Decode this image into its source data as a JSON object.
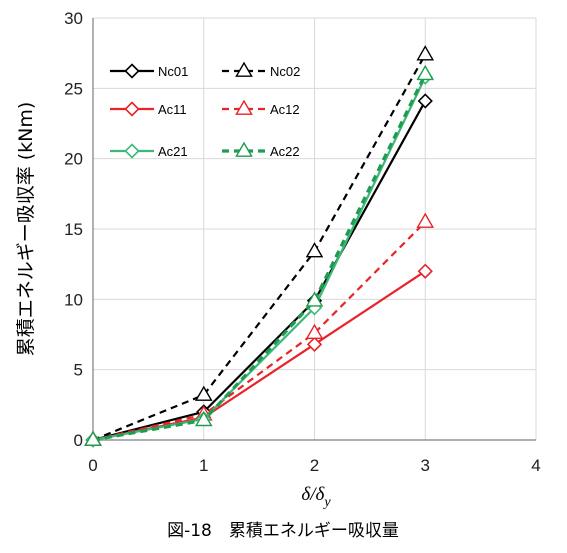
{
  "figure": {
    "caption": "図-18　累積エネルギー吸収量"
  },
  "chart_data": {
    "type": "line",
    "xlabel": "δ/δy",
    "xlabel_main": "δ/δ",
    "xlabel_sub": "y",
    "ylabel": "累積エネルギー吸収率 (kNm)",
    "xlim": [
      0,
      4
    ],
    "ylim": [
      0,
      30
    ],
    "xticks": [
      "0",
      "1",
      "2",
      "3",
      "4"
    ],
    "yticks": [
      "0",
      "5",
      "10",
      "15",
      "20",
      "25",
      "30"
    ],
    "grid": true,
    "legend_position": "top-left",
    "series": [
      {
        "name": "Nc01",
        "color": "#000000",
        "dash": "solid",
        "marker": "diamond",
        "x": [
          0,
          1,
          2,
          3
        ],
        "y": [
          0,
          2.0,
          9.9,
          24.1
        ]
      },
      {
        "name": "Nc02",
        "color": "#000000",
        "dash": "dashed",
        "marker": "triangle",
        "x": [
          0,
          1,
          2,
          3
        ],
        "y": [
          0,
          3.2,
          13.4,
          27.4
        ]
      },
      {
        "name": "Ac11",
        "color": "#e8232a",
        "dash": "solid",
        "marker": "diamond",
        "x": [
          0,
          1,
          2,
          3
        ],
        "y": [
          0,
          1.6,
          6.8,
          12.0
        ]
      },
      {
        "name": "Ac12",
        "color": "#e8232a",
        "dash": "dashed",
        "marker": "triangle",
        "x": [
          0,
          1,
          2,
          3
        ],
        "y": [
          0,
          1.8,
          7.6,
          15.5
        ]
      },
      {
        "name": "Ac21",
        "color": "#3cb878",
        "dash": "solid",
        "marker": "diamond",
        "x": [
          0,
          1,
          2,
          3
        ],
        "y": [
          0,
          1.5,
          9.4,
          25.8
        ]
      },
      {
        "name": "Ac22",
        "color": "#1f9c4f",
        "dash": "dashed",
        "marker": "triangle",
        "x": [
          0,
          1,
          2,
          3
        ],
        "y": [
          0,
          1.4,
          9.9,
          26.0
        ]
      }
    ]
  }
}
